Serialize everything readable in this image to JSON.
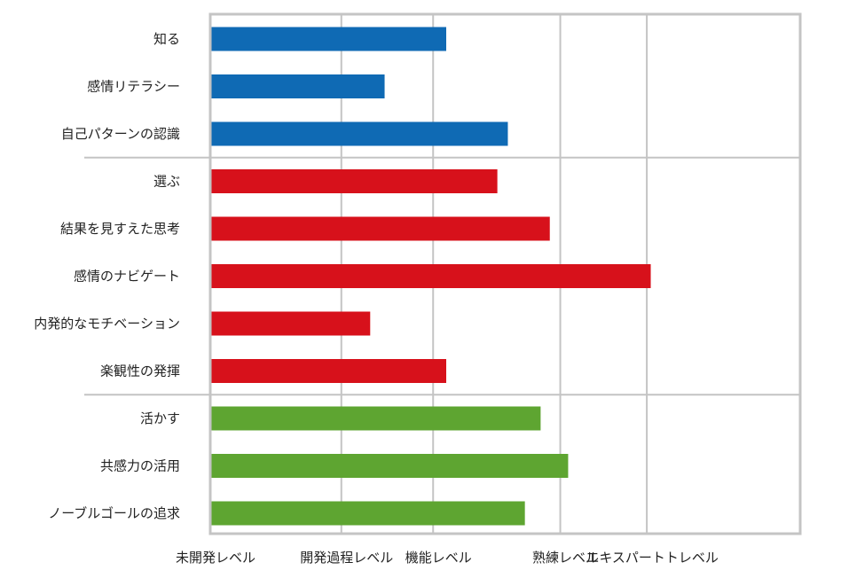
{
  "chart_data": {
    "type": "bar",
    "orientation": "horizontal",
    "title": "",
    "xlabel": "",
    "ylabel": "",
    "grid": true,
    "legend": "none",
    "xlim": [
      0,
      4.5
    ],
    "ticks": [
      {
        "value": 0,
        "label": "未開発レベル"
      },
      {
        "value": 1,
        "label": "開発過程レベル"
      },
      {
        "value": 1.7,
        "label": "機能レベル"
      },
      {
        "value": 2.67,
        "label": "熟練レベル"
      },
      {
        "value": 3.33,
        "label": "エキスパートトレベル"
      }
    ],
    "groups": [
      {
        "color": "#0f6ab4",
        "items": [
          {
            "label": "知る",
            "value": 1.8
          },
          {
            "label": "感情リテラシー",
            "value": 1.33
          },
          {
            "label": "自己パターンの認識",
            "value": 2.27
          }
        ]
      },
      {
        "color": "#d7111b",
        "items": [
          {
            "label": "選ぶ",
            "value": 2.19
          },
          {
            "label": "結果を見すえた思考",
            "value": 2.59
          },
          {
            "label": "感情のナビゲート",
            "value": 3.36
          },
          {
            "label": "内発的なモチベーション",
            "value": 1.22
          },
          {
            "label": "楽観性の発揮",
            "value": 1.8
          }
        ]
      },
      {
        "color": "#5ea531",
        "items": [
          {
            "label": "活かす",
            "value": 2.52
          },
          {
            "label": "共感力の活用",
            "value": 2.73
          },
          {
            "label": "ノーブルゴールの追求",
            "value": 2.4
          }
        ]
      }
    ]
  }
}
